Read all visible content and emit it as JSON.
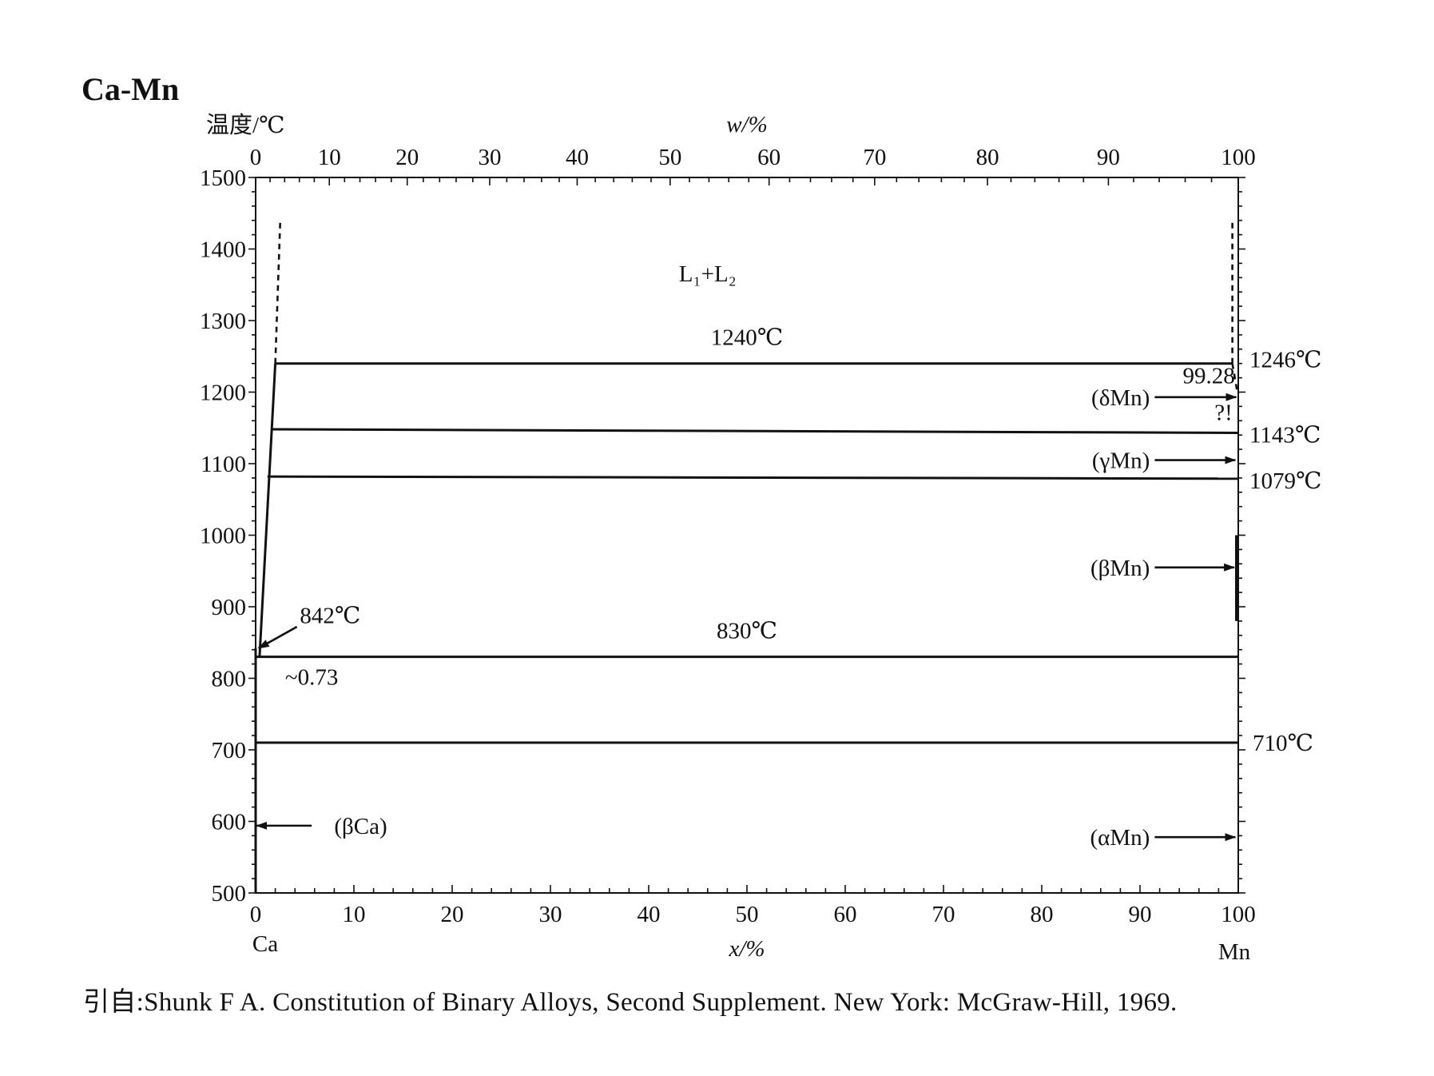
{
  "title": "Ca-Mn",
  "citation": "引自:Shunk F A. Constitution of Binary Alloys, Second Supplement. New York: McGraw-Hill, 1969.",
  "chart_data": {
    "type": "line",
    "chart_kind": "binary phase diagram",
    "ylabel": "温度/℃",
    "xlabel_bottom": "x/%",
    "xlabel_top": "w/%",
    "ylim": [
      500,
      1500
    ],
    "xlim": [
      0,
      100
    ],
    "y_ticks": [
      500,
      600,
      700,
      800,
      900,
      1000,
      1100,
      1200,
      1300,
      1400,
      1500
    ],
    "x_ticks_bottom": [
      0,
      10,
      20,
      30,
      40,
      50,
      60,
      70,
      80,
      90,
      100
    ],
    "x_ticks_top": [
      0,
      10,
      20,
      30,
      40,
      50,
      60,
      70,
      80,
      90,
      100
    ],
    "left_element": "Ca",
    "right_element": "Mn",
    "grid": false,
    "series": [
      {
        "line_style": "solid",
        "points": [
          [
            0.4,
            830
          ],
          [
            2.0,
            1240
          ]
        ]
      },
      {
        "line_style": "solid",
        "points": [
          [
            2.0,
            1240
          ],
          [
            99.4,
            1240
          ]
        ]
      },
      {
        "line_style": "solid",
        "points": [
          [
            1.6,
            1148
          ],
          [
            100,
            1143
          ]
        ]
      },
      {
        "line_style": "solid",
        "points": [
          [
            1.2,
            1082
          ],
          [
            100,
            1079
          ]
        ]
      },
      {
        "line_style": "solid",
        "points": [
          [
            0,
            830
          ],
          [
            100,
            830
          ]
        ]
      },
      {
        "line_style": "solid",
        "points": [
          [
            0,
            710
          ],
          [
            100,
            710
          ]
        ]
      },
      {
        "line_style": "solid",
        "points": [
          [
            0,
            500
          ],
          [
            0,
            842
          ]
        ]
      },
      {
        "line_style": "solid",
        "points": [
          [
            99.8,
            880
          ],
          [
            99.8,
            1000
          ]
        ]
      },
      {
        "line_style": "dashed",
        "points": [
          [
            2.0,
            1240
          ],
          [
            2.5,
            1440
          ]
        ]
      },
      {
        "line_style": "dashed",
        "points": [
          [
            99.4,
            1240
          ],
          [
            99.4,
            1440
          ]
        ]
      },
      {
        "line_style": "dashed",
        "points": [
          [
            99.4,
            1240
          ],
          [
            99.9,
            1200
          ]
        ]
      }
    ],
    "annotations": [
      {
        "text": "L₁+L₂",
        "x": 46,
        "y": 1355
      },
      {
        "text": "1240℃",
        "x": 50,
        "y": 1257
      },
      {
        "text": "1246℃",
        "x": 100,
        "y": 1246,
        "side": "right"
      },
      {
        "text": "99.28",
        "x": 97,
        "y": 1221
      },
      {
        "text": "(δMn)",
        "x": 91,
        "y": 1193,
        "arrow": true
      },
      {
        "text": "?!",
        "x": 98.5,
        "y": 1170
      },
      {
        "text": "1143℃",
        "x": 100,
        "y": 1143,
        "side": "right"
      },
      {
        "text": "(γMn)",
        "x": 91,
        "y": 1105,
        "arrow": true
      },
      {
        "text": "1079℃",
        "x": 100,
        "y": 1079,
        "side": "right"
      },
      {
        "text": "(βMn)",
        "x": 91,
        "y": 955,
        "arrow": true
      },
      {
        "text": "842℃",
        "x": 4.5,
        "y": 886,
        "arrow": true
      },
      {
        "text": "830℃",
        "x": 50,
        "y": 847
      },
      {
        "text": "~0.73",
        "x": 3,
        "y": 800
      },
      {
        "text": "710℃",
        "x": 100,
        "y": 710,
        "side": "right"
      },
      {
        "text": "(βCa)",
        "x": 8,
        "y": 594,
        "arrow": true
      },
      {
        "text": "(αMn)",
        "x": 91,
        "y": 578,
        "arrow": true
      }
    ]
  }
}
